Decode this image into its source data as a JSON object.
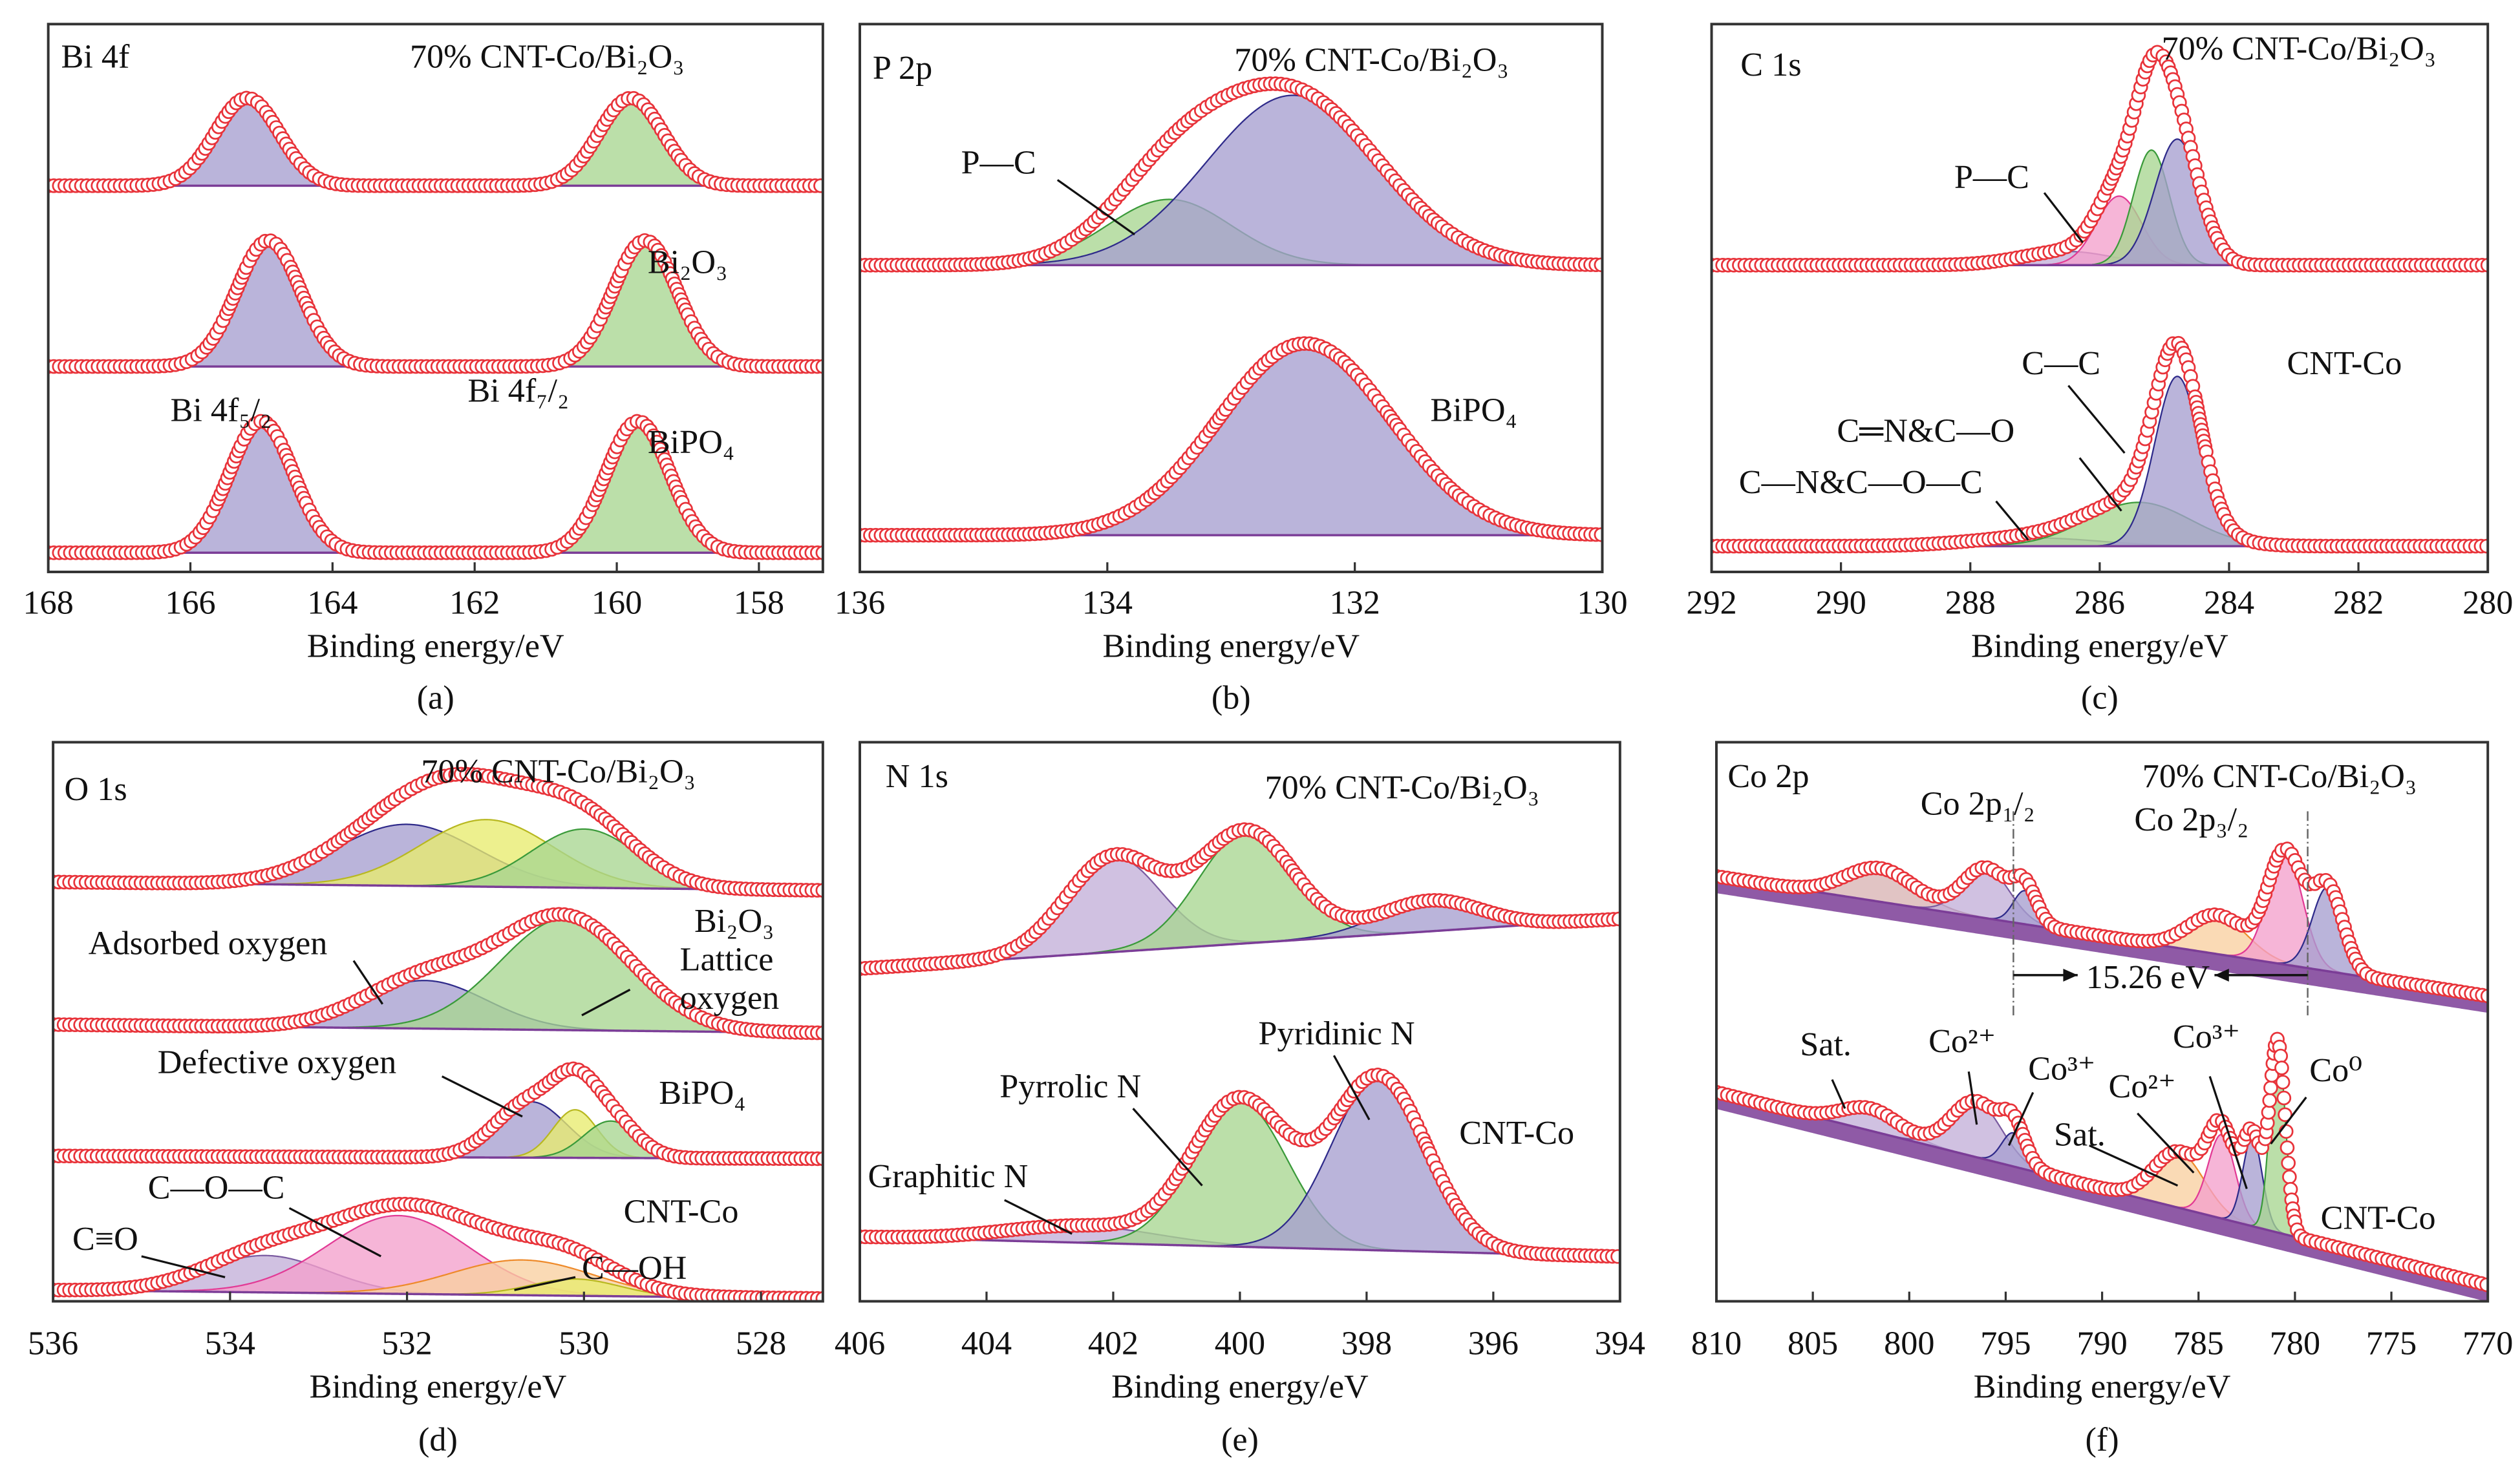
{
  "colors": {
    "marker": "#e8333a",
    "frame": "#333333",
    "background_line": "#7b3d97",
    "purple": {
      "fill": "#a79fd0",
      "stroke": "#2e2a8a"
    },
    "green": {
      "fill": "#a8d691",
      "stroke": "#3a9a3a"
    },
    "pink": {
      "fill": "#f3a0cc",
      "stroke": "#e23a95"
    },
    "yellow": {
      "fill": "#e8ec6e",
      "stroke": "#b8b820"
    },
    "orange": {
      "fill": "#f8cfa0",
      "stroke": "#ee8a2a"
    },
    "lilac": {
      "fill": "#c3b0d8",
      "stroke": "#7a5aa0"
    },
    "brown": {
      "fill": "#d8b4b4",
      "stroke": "#a06060"
    }
  },
  "chart_data": [
    {
      "caption": "(a)",
      "type": "line",
      "xlabel": "Binding energy/eV",
      "ylabel": "",
      "xlim": [
        168,
        157.1
      ],
      "ylim": [
        0,
        100
      ],
      "x_reversed": true,
      "grid": false,
      "xticks": [
        "168",
        "166",
        "164",
        "162",
        "160",
        "158"
      ],
      "labels": [
        "Bi 4f",
        "70% CNT-Co/Bi₂O₃",
        "Bi₂O₃",
        "Bi 4f₅/₂",
        "Bi 4f₇/₂",
        "BiPO₄"
      ],
      "spectra": [
        {
          "name": "70% CNT-Co/Bi₂O₃",
          "background": [
            70.5,
            70.5
          ],
          "components": [
            {
              "center": 165.2,
              "height": 16,
              "sigma": 0.45,
              "color": "purple"
            },
            {
              "center": 159.8,
              "height": 16,
              "sigma": 0.45,
              "color": "green"
            }
          ]
        },
        {
          "name": "Bi₂O₃",
          "background": [
            37.5,
            37.5
          ],
          "components": [
            {
              "center": 164.9,
              "height": 23,
              "sigma": 0.45,
              "color": "purple"
            },
            {
              "center": 159.6,
              "height": 23,
              "sigma": 0.45,
              "color": "green"
            }
          ]
        },
        {
          "name": "BiPO₄",
          "background": [
            3.5,
            3.5
          ],
          "components": [
            {
              "center": 165.0,
              "height": 24,
              "sigma": 0.45,
              "color": "purple"
            },
            {
              "center": 159.7,
              "height": 24,
              "sigma": 0.45,
              "color": "green"
            }
          ]
        }
      ]
    },
    {
      "caption": "(b)",
      "type": "line",
      "xlabel": "Binding energy/eV",
      "ylabel": "",
      "xlim": [
        136,
        130
      ],
      "ylim": [
        0,
        100
      ],
      "x_reversed": true,
      "grid": false,
      "xticks": [
        "136",
        "134",
        "132",
        "130"
      ],
      "labels": [
        "P 2p",
        "70% CNT-Co/Bi₂O₃",
        "P—C",
        "BiPO₄"
      ],
      "spectra": [
        {
          "name": "70% CNT-Co/Bi₂O₃",
          "background": [
            56,
            56
          ],
          "components": [
            {
              "center": 133.5,
              "height": 12,
              "sigma": 0.5,
              "color": "green"
            },
            {
              "center": 132.5,
              "height": 31,
              "sigma": 0.7,
              "color": "purple"
            }
          ]
        },
        {
          "name": "BiPO₄",
          "background": [
            6.7,
            6.7
          ],
          "components": [
            {
              "center": 132.4,
              "height": 35,
              "sigma": 0.7,
              "color": "purple"
            }
          ]
        }
      ]
    },
    {
      "caption": "(c)",
      "type": "line",
      "xlabel": "Binding energy/eV",
      "ylabel": "",
      "xlim": [
        292,
        280
      ],
      "ylim": [
        0,
        100
      ],
      "x_reversed": true,
      "grid": false,
      "xticks": [
        "292",
        "290",
        "288",
        "286",
        "284",
        "282",
        "280"
      ],
      "labels": [
        "C 1s",
        "70% CNT-Co/Bi₂O₃",
        "P—C",
        "C—C",
        "CNT-Co",
        "C═N&C—O",
        "C—N&C—O—C"
      ],
      "spectra": [
        {
          "name": "70% CNT-Co/Bi₂O₃",
          "background": [
            56,
            56
          ],
          "components": [
            {
              "center": 286.5,
              "height": 2.5,
              "sigma": 0.7,
              "color": "lilac"
            },
            {
              "center": 285.7,
              "height": 12.6,
              "sigma": 0.35,
              "color": "pink"
            },
            {
              "center": 285.2,
              "height": 21,
              "sigma": 0.28,
              "color": "green"
            },
            {
              "center": 284.8,
              "height": 23,
              "sigma": 0.35,
              "color": "purple"
            }
          ]
        },
        {
          "name": "CNT-Co",
          "background": [
            4.7,
            4.7
          ],
          "components": [
            {
              "center": 287.0,
              "height": 1.5,
              "sigma": 1.0,
              "color": "lilac"
            },
            {
              "center": 285.4,
              "height": 8,
              "sigma": 0.8,
              "color": "green"
            },
            {
              "center": 284.8,
              "height": 31,
              "sigma": 0.35,
              "color": "purple"
            }
          ]
        }
      ]
    },
    {
      "caption": "(d)",
      "type": "line",
      "xlabel": "Binding energy/eV",
      "ylabel": "",
      "xlim": [
        536,
        527.3
      ],
      "ylim": [
        0,
        100
      ],
      "x_reversed": true,
      "grid": false,
      "xticks": [
        "536",
        "534",
        "532",
        "530",
        "528"
      ],
      "labels": [
        "O 1s",
        "70% CNT-Co/Bi₂O₃",
        "Adsorbed oxygen",
        "Bi₂O₃",
        "Lattice",
        "oxygen",
        "Defective oxygen",
        "BiPO₄",
        "C—O—C",
        "C≡O",
        "CNT-Co",
        "C—OH"
      ],
      "spectra": [
        {
          "name": "70% CNT-Co/Bi₂O₃",
          "background": [
            75,
            73.5
          ],
          "components": [
            {
              "center": 532.0,
              "height": 11,
              "sigma": 0.8,
              "color": "purple"
            },
            {
              "center": 531.1,
              "height": 12,
              "sigma": 0.75,
              "color": "yellow"
            },
            {
              "center": 530.0,
              "height": 10.5,
              "sigma": 0.6,
              "color": "green"
            }
          ]
        },
        {
          "name": "Bi₂O₃",
          "background": [
            49.5,
            48
          ],
          "components": [
            {
              "center": 531.8,
              "height": 8.6,
              "sigma": 0.7,
              "color": "purple"
            },
            {
              "center": 530.2,
              "height": 20,
              "sigma": 0.75,
              "color": "green"
            }
          ]
        },
        {
          "name": "BiPO₄",
          "background": [
            26,
            25.5
          ],
          "components": [
            {
              "center": 530.6,
              "height": 10,
              "sigma": 0.4,
              "color": "purple"
            },
            {
              "center": 530.1,
              "height": 8.6,
              "sigma": 0.25,
              "color": "yellow"
            },
            {
              "center": 529.7,
              "height": 6.6,
              "sigma": 0.3,
              "color": "green"
            }
          ]
        },
        {
          "name": "CNT-Co",
          "background": [
            2,
            0.5
          ],
          "components": [
            {
              "center": 533.6,
              "height": 6.6,
              "sigma": 0.7,
              "color": "lilac"
            },
            {
              "center": 532.1,
              "height": 14,
              "sigma": 0.8,
              "color": "pink"
            },
            {
              "center": 530.7,
              "height": 6.3,
              "sigma": 0.8,
              "color": "orange"
            },
            {
              "center": 530.1,
              "height": 3,
              "sigma": 0.5,
              "color": "yellow"
            }
          ]
        }
      ]
    },
    {
      "caption": "(e)",
      "type": "line",
      "xlabel": "Binding energy/eV",
      "ylabel": "",
      "xlim": [
        406,
        394
      ],
      "ylim": [
        0,
        100
      ],
      "x_reversed": true,
      "grid": false,
      "xticks": [
        "406",
        "404",
        "402",
        "400",
        "398",
        "396",
        "394"
      ],
      "labels": [
        "N 1s",
        "70% CNT-Co/Bi₂O₃",
        "Pyridinic N",
        "Pyrrolic N",
        "CNT-Co",
        "Graphitic N"
      ],
      "spectra": [
        {
          "name": "70% CNT-Co/Bi₂O₃",
          "background": [
            59.5,
            68.4
          ],
          "components": [
            {
              "center": 402.0,
              "height": 17,
              "sigma": 0.75,
              "color": "lilac"
            },
            {
              "center": 399.9,
              "height": 20,
              "sigma": 0.75,
              "color": "green"
            },
            {
              "center": 397.0,
              "height": 5.5,
              "sigma": 0.8,
              "color": "purple"
            }
          ]
        },
        {
          "name": "CNT-Co",
          "background": [
            11.5,
            8
          ],
          "components": [
            {
              "center": 402.5,
              "height": 3,
              "sigma": 1.2,
              "color": "lilac"
            },
            {
              "center": 400.0,
              "height": 26,
              "sigma": 0.75,
              "color": "green"
            },
            {
              "center": 397.8,
              "height": 31,
              "sigma": 0.75,
              "color": "purple"
            }
          ]
        }
      ]
    },
    {
      "caption": "(f)",
      "type": "line",
      "xlabel": "Binding energy/eV",
      "ylabel": "",
      "xlim": [
        810,
        770
      ],
      "ylim": [
        0,
        100
      ],
      "x_reversed": true,
      "grid": false,
      "xticks": [
        "810",
        "805",
        "800",
        "795",
        "790",
        "785",
        "780",
        "775",
        "770"
      ],
      "labels": [
        "Co 2p",
        "70% CNT-Co/Bi₂O₃",
        "Co 2p₁/₂",
        "Co 2p₃/₂",
        "15.26 eV",
        "Sat.",
        "Co²⁺",
        "Co³⁺",
        "Co²⁺",
        "Sat.",
        "Co³⁺",
        "Co⁰",
        "CNT-Co"
      ],
      "spin_orbit_markers": [
        794.6,
        779.34
      ],
      "spectra": [
        {
          "name": "70% CNT-Co/Bi₂O₃",
          "background": [
            76,
            54.6
          ],
          "components": [
            {
              "center": 801.5,
              "height": 6,
              "sigma": 1.8,
              "color": "brown"
            },
            {
              "center": 796.0,
              "height": 9,
              "sigma": 1.2,
              "color": "lilac"
            },
            {
              "center": 794.0,
              "height": 6,
              "sigma": 0.6,
              "color": "purple"
            },
            {
              "center": 784.0,
              "height": 7,
              "sigma": 1.5,
              "color": "orange"
            },
            {
              "center": 780.5,
              "height": 20,
              "sigma": 0.9,
              "color": "pink"
            },
            {
              "center": 778.3,
              "height": 15,
              "sigma": 0.8,
              "color": "purple"
            }
          ]
        },
        {
          "name": "CNT-Co",
          "background": [
            37.4,
            2.9
          ],
          "components": [
            {
              "center": 802.0,
              "height": 4,
              "sigma": 1.5,
              "color": "lilac"
            },
            {
              "center": 796.5,
              "height": 10,
              "sigma": 1.3,
              "color": "lilac"
            },
            {
              "center": 794.6,
              "height": 6,
              "sigma": 0.6,
              "color": "purple"
            },
            {
              "center": 786.0,
              "height": 10,
              "sigma": 1.3,
              "color": "orange"
            },
            {
              "center": 783.8,
              "height": 15,
              "sigma": 0.7,
              "color": "pink"
            },
            {
              "center": 782.2,
              "height": 16,
              "sigma": 0.5,
              "color": "purple"
            },
            {
              "center": 780.9,
              "height": 34,
              "sigma": 0.4,
              "color": "green"
            }
          ]
        }
      ]
    }
  ]
}
